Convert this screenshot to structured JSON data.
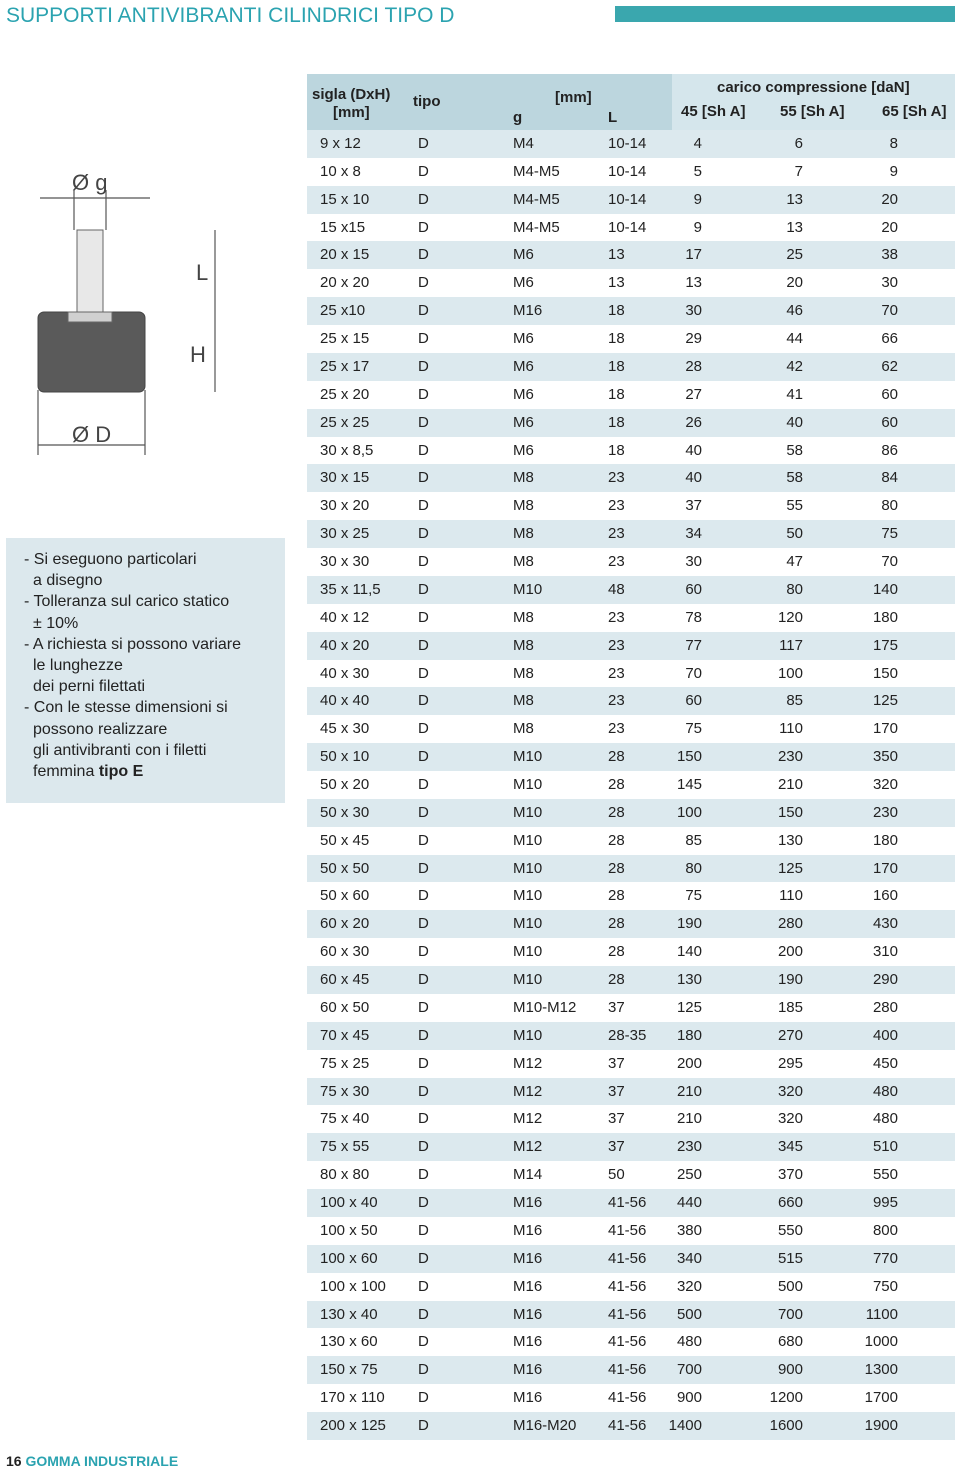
{
  "header": {
    "title": "SUPPORTI ANTIVIBRANTI CILINDRICI TIPO D"
  },
  "drawing": {
    "labels": [
      "Ø g",
      "L",
      "H",
      "Ø D"
    ]
  },
  "note": {
    "lines": [
      "- Si eseguono particolari",
      "a disegno",
      "- Tolleranza sul carico statico",
      "± 10%",
      "- A richiesta si possono variare",
      "le lunghezze",
      "dei perni filettati",
      "- Con le stesse dimensioni si",
      "possono realizzare",
      "gli antivibranti con i filetti"
    ],
    "last_line": "femmina",
    "last_bold": "tipo E"
  },
  "table": {
    "head": {
      "sigla": "sigla (DxH)",
      "sigla_unit": "[mm]",
      "tipo": "tipo",
      "mm": "[mm]",
      "g": "g",
      "L": "L",
      "carico": "carico compressione [daN]",
      "c45": "45 [Sh A]",
      "c55": "55 [Sh A]",
      "c65": "65 [Sh A]"
    },
    "rows": [
      [
        "9 x 12",
        "D",
        "M4",
        "10-14",
        4,
        6,
        8
      ],
      [
        "10 x 8",
        "D",
        "M4-M5",
        "10-14",
        5,
        7,
        9
      ],
      [
        "15 x 10",
        "D",
        "M4-M5",
        "10-14",
        9,
        13,
        20
      ],
      [
        "15 x15",
        "D",
        "M4-M5",
        "10-14",
        9,
        13,
        20
      ],
      [
        "20 x 15",
        "D",
        "M6",
        "13",
        17,
        25,
        38
      ],
      [
        "20 x 20",
        "D",
        "M6",
        "13",
        13,
        20,
        30
      ],
      [
        "25 x10",
        "D",
        "M16",
        "18",
        30,
        46,
        70
      ],
      [
        "25 x 15",
        "D",
        "M6",
        "18",
        29,
        44,
        66
      ],
      [
        "25 x 17",
        "D",
        "M6",
        "18",
        28,
        42,
        62
      ],
      [
        "25 x 20",
        "D",
        "M6",
        "18",
        27,
        41,
        60
      ],
      [
        "25 x 25",
        "D",
        "M6",
        "18",
        26,
        40,
        60
      ],
      [
        "30 x 8,5",
        "D",
        "M6",
        "18",
        40,
        58,
        86
      ],
      [
        "30 x 15",
        "D",
        "M8",
        "23",
        40,
        58,
        84
      ],
      [
        "30 x 20",
        "D",
        "M8",
        "23",
        37,
        55,
        80
      ],
      [
        "30 x 25",
        "D",
        "M8",
        "23",
        34,
        50,
        75
      ],
      [
        "30 x 30",
        "D",
        "M8",
        "23",
        30,
        47,
        70
      ],
      [
        "35 x 11,5",
        "D",
        "M10",
        "48",
        60,
        80,
        140
      ],
      [
        "40 x 12",
        "D",
        "M8",
        "23",
        78,
        120,
        180
      ],
      [
        "40 x 20",
        "D",
        "M8",
        "23",
        77,
        117,
        175
      ],
      [
        "40 x 30",
        "D",
        "M8",
        "23",
        70,
        100,
        150
      ],
      [
        "40 x 40",
        "D",
        "M8",
        "23",
        60,
        85,
        125
      ],
      [
        "45 x 30",
        "D",
        "M8",
        "23",
        75,
        110,
        170
      ],
      [
        "50 x 10",
        "D",
        "M10",
        "28",
        150,
        230,
        350
      ],
      [
        "50 x 20",
        "D",
        "M10",
        "28",
        145,
        210,
        320
      ],
      [
        "50 x 30",
        "D",
        "M10",
        "28",
        100,
        150,
        230
      ],
      [
        "50 x 45",
        "D",
        "M10",
        "28",
        85,
        130,
        180
      ],
      [
        "50 x 50",
        "D",
        "M10",
        "28",
        80,
        125,
        170
      ],
      [
        "50 x 60",
        "D",
        "M10",
        "28",
        75,
        110,
        160
      ],
      [
        "60 x 20",
        "D",
        "M10",
        "28",
        190,
        280,
        430
      ],
      [
        "60 x 30",
        "D",
        "M10",
        "28",
        140,
        200,
        310
      ],
      [
        "60 x 45",
        "D",
        "M10",
        "28",
        130,
        190,
        290
      ],
      [
        "60 x 50",
        "D",
        "M10-M12",
        "37",
        125,
        185,
        280
      ],
      [
        "70 x 45",
        "D",
        "M10",
        "28-35",
        180,
        270,
        400
      ],
      [
        "75 x 25",
        "D",
        "M12",
        "37",
        200,
        295,
        450
      ],
      [
        "75 x 30",
        "D",
        "M12",
        "37",
        210,
        320,
        480
      ],
      [
        "75 x 40",
        "D",
        "M12",
        "37",
        210,
        320,
        480
      ],
      [
        "75 x 55",
        "D",
        "M12",
        "37",
        230,
        345,
        510
      ],
      [
        "80 x 80",
        "D",
        "M14",
        "50",
        250,
        370,
        550
      ],
      [
        "100 x 40",
        "D",
        "M16",
        "41-56",
        440,
        660,
        995
      ],
      [
        "100 x 50",
        "D",
        "M16",
        "41-56",
        380,
        550,
        800
      ],
      [
        "100 x 60",
        "D",
        "M16",
        "41-56",
        340,
        515,
        770
      ],
      [
        "100 x 100",
        "D",
        "M16",
        "41-56",
        320,
        500,
        750
      ],
      [
        "130 x 40",
        "D",
        "M16",
        "41-56",
        500,
        700,
        1100
      ],
      [
        "130 x 60",
        "D",
        "M16",
        "41-56",
        480,
        680,
        1000
      ],
      [
        "150 x 75",
        "D",
        "M16",
        "41-56",
        700,
        900,
        1300
      ],
      [
        "170 x 110",
        "D",
        "M16",
        "41-56",
        900,
        1200,
        1700
      ],
      [
        "200 x 125",
        "D",
        "M16-M20",
        "41-56",
        1400,
        1600,
        1900
      ]
    ]
  },
  "footer": {
    "page": "16",
    "brand": "GOMMA INDUSTRIALE"
  }
}
